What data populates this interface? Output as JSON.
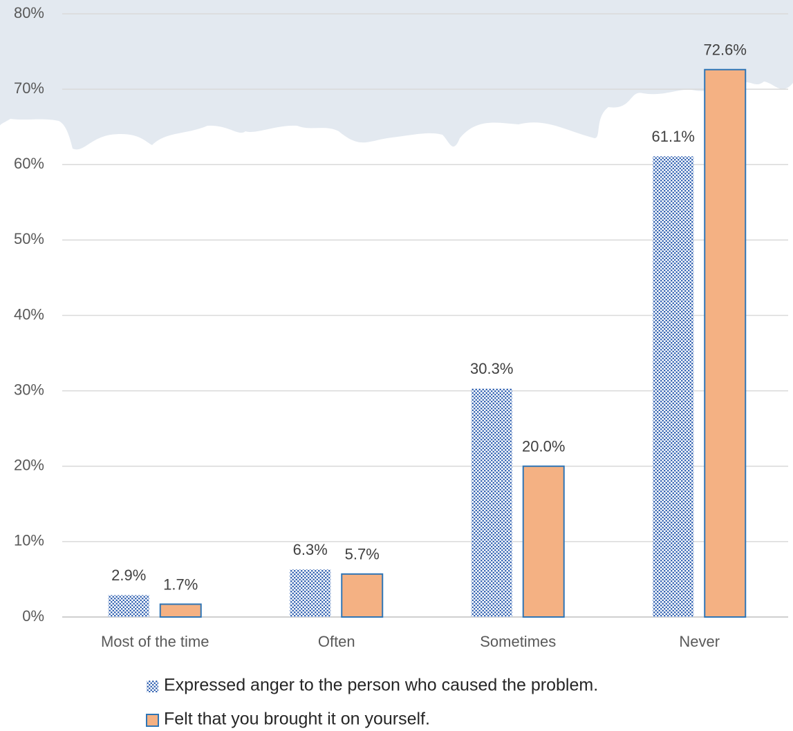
{
  "chart_data": {
    "type": "bar",
    "categories": [
      "Most of the time",
      "Often",
      "Sometimes",
      "Never"
    ],
    "series": [
      {
        "name": "Expressed anger to the person who caused the problem.",
        "color": "#2e5fb0",
        "pattern": "dots",
        "values": [
          2.9,
          6.3,
          30.3,
          61.1
        ],
        "value_labels": [
          "2.9%",
          "6.3%",
          "30.3%",
          "61.1%"
        ]
      },
      {
        "name": "Felt that you brought it on yourself.",
        "color": "#f4b183",
        "values": [
          1.7,
          5.7,
          20.0,
          72.6
        ],
        "value_labels": [
          "1.7%",
          "5.7%",
          "20.0%",
          "72.6%"
        ]
      }
    ],
    "ylim": [
      0,
      80
    ],
    "yticks": [
      {
        "value": 0,
        "label": "0%"
      },
      {
        "value": 10,
        "label": "10%"
      },
      {
        "value": 20,
        "label": "20%"
      },
      {
        "value": 30,
        "label": "30%"
      },
      {
        "value": 40,
        "label": "40%"
      },
      {
        "value": 50,
        "label": "50%"
      },
      {
        "value": 60,
        "label": "60%"
      },
      {
        "value": 70,
        "label": "70%"
      },
      {
        "value": 80,
        "label": "80%"
      }
    ],
    "grid": true
  }
}
